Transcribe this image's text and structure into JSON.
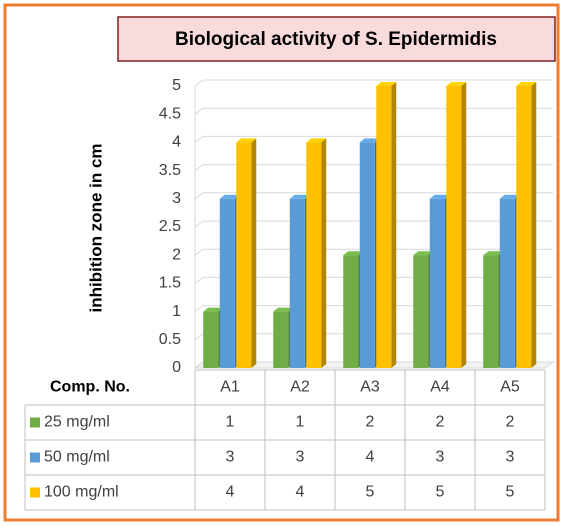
{
  "chart_data": {
    "type": "bar3d",
    "title": "Biological activity of S. Epidermidis",
    "y_label": "inhibition zone in cm",
    "table_header": "Comp. No.",
    "categories": [
      "A1",
      "A2",
      "A3",
      "A4",
      "A5"
    ],
    "series": [
      {
        "name": "25 mg/ml",
        "color": "#70ad47",
        "values": [
          1,
          1,
          2,
          2,
          2
        ]
      },
      {
        "name": "50 mg/ml",
        "color": "#5b9bd5",
        "values": [
          3,
          3,
          4,
          3,
          3
        ]
      },
      {
        "name": "100 mg/ml",
        "color": "#ffc000",
        "values": [
          4,
          4,
          5,
          5,
          5
        ]
      }
    ],
    "ylim": [
      0,
      5
    ],
    "yticks": [
      0,
      0.5,
      1,
      1.5,
      2,
      2.5,
      3,
      3.5,
      4,
      4.5,
      5
    ],
    "grid": true
  }
}
